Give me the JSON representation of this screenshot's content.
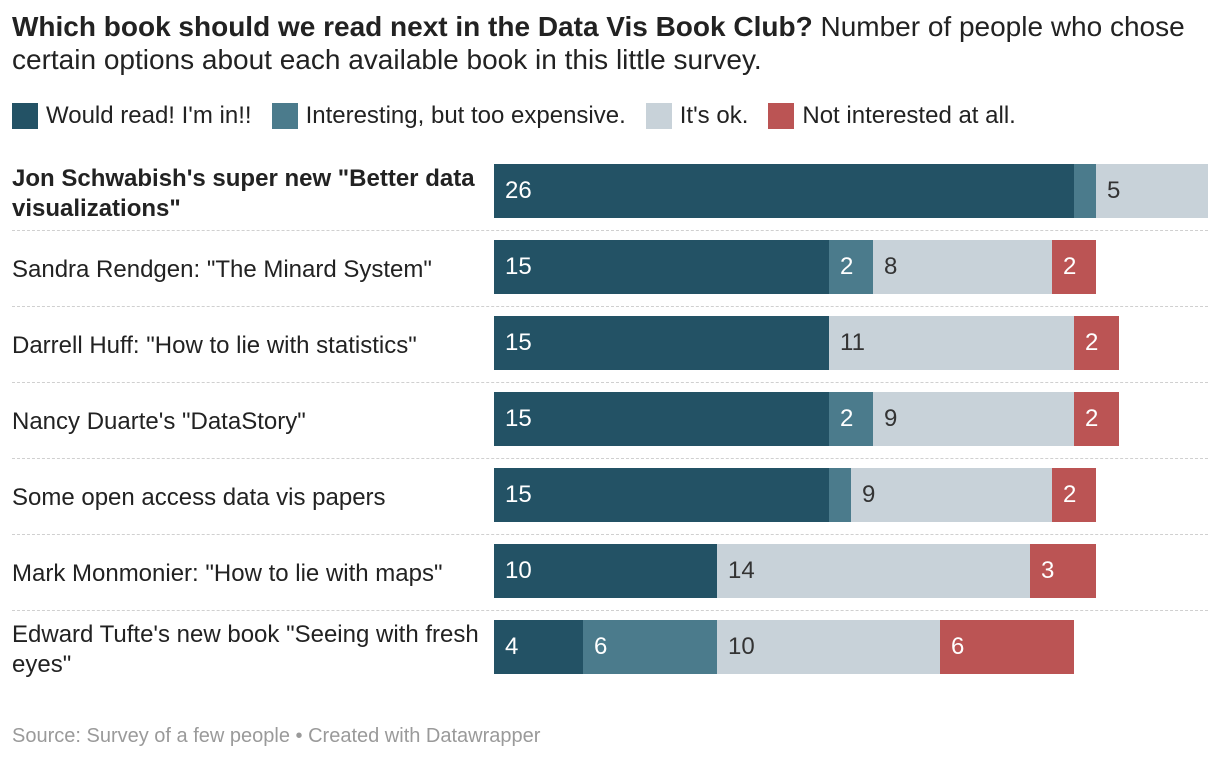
{
  "header": {
    "title": "Which book should we read next in the Data Vis Book Club?",
    "subtitle": "Number of people who chose certain options about each available book in this little survey."
  },
  "colors": {
    "would_read": "#235265",
    "expensive": "#4b7b8c",
    "ok": "#c8d2d9",
    "not_interested": "#bb5454"
  },
  "footer": {
    "source": "Source: Survey of a few people",
    "separator": "•",
    "credit": "Created with Datawrapper"
  },
  "chart_data": {
    "type": "bar",
    "orientation": "horizontal",
    "stacked": true,
    "title": "Which book should we read next in the Data Vis Book Club?",
    "subtitle": "Number of people who chose certain options about each available book in this little survey.",
    "legend_position": "top",
    "categories": [
      "Jon Schwabish's super new \"Better data visualizations\"",
      "Sandra Rendgen: \"The Minard System\"",
      "Darrell Huff: \"How to lie with statistics\"",
      "Nancy Duarte's \"DataStory\"",
      "Some open access data vis papers",
      "Mark Monmonier: \"How to lie with maps\"",
      "Edward Tufte's new book \"Seeing with fresh eyes\""
    ],
    "highlight_category": 0,
    "xlim": [
      0,
      32
    ],
    "series": [
      {
        "name": "Would read! I'm in!!",
        "color_key": "would_read",
        "label_color": "#ffffff",
        "values": [
          26,
          15,
          15,
          15,
          15,
          10,
          4
        ]
      },
      {
        "name": "Interesting, but too expensive.",
        "color_key": "expensive",
        "label_color": "#ffffff",
        "values": [
          1,
          2,
          0,
          2,
          1,
          0,
          6
        ],
        "labeled": [
          false,
          true,
          false,
          true,
          false,
          false,
          true
        ]
      },
      {
        "name": "It's ok.",
        "color_key": "ok",
        "label_color": "#333333",
        "values": [
          5,
          8,
          11,
          9,
          9,
          14,
          10
        ]
      },
      {
        "name": "Not interested at all.",
        "color_key": "not_interested",
        "label_color": "#ffffff",
        "values": [
          0,
          2,
          2,
          2,
          2,
          3,
          6
        ]
      }
    ]
  }
}
